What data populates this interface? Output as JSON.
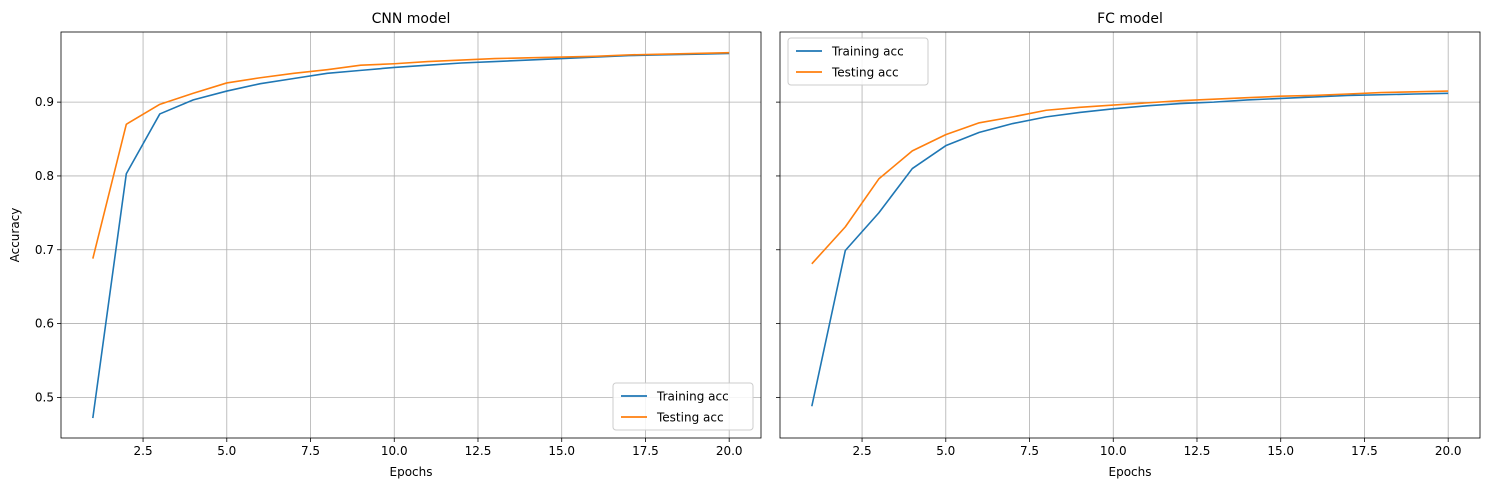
{
  "chart_data": [
    {
      "type": "line",
      "title": "CNN model",
      "xlabel": "Epochs",
      "ylabel": "Accuracy",
      "xlim": [
        0.05,
        20.95
      ],
      "ylim": [
        0.445,
        0.995
      ],
      "xticks": [
        2.5,
        5.0,
        7.5,
        10.0,
        12.5,
        15.0,
        17.5,
        20.0
      ],
      "xtick_labels": [
        "2.5",
        "5.0",
        "7.5",
        "10.0",
        "12.5",
        "15.0",
        "17.5",
        "20.0"
      ],
      "yticks": [
        0.5,
        0.6,
        0.7,
        0.8,
        0.9
      ],
      "ytick_labels": [
        "0.5",
        "0.6",
        "0.7",
        "0.8",
        "0.9"
      ],
      "grid": true,
      "legend_position": "lower-right",
      "x": [
        1,
        2,
        3,
        4,
        5,
        6,
        7,
        8,
        9,
        10,
        11,
        12,
        13,
        14,
        15,
        16,
        17,
        18,
        19,
        20
      ],
      "series": [
        {
          "name": "Training acc",
          "color": "#1f77b4",
          "values": [
            0.472,
            0.803,
            0.884,
            0.903,
            0.915,
            0.925,
            0.932,
            0.939,
            0.943,
            0.947,
            0.95,
            0.953,
            0.955,
            0.957,
            0.959,
            0.961,
            0.963,
            0.964,
            0.965,
            0.966
          ]
        },
        {
          "name": "Testing acc",
          "color": "#ff7f0e",
          "values": [
            0.688,
            0.87,
            0.897,
            0.912,
            0.926,
            0.933,
            0.939,
            0.944,
            0.95,
            0.952,
            0.955,
            0.957,
            0.959,
            0.96,
            0.961,
            0.962,
            0.964,
            0.965,
            0.966,
            0.967
          ]
        }
      ]
    },
    {
      "type": "line",
      "title": "FC model",
      "xlabel": "Epochs",
      "ylabel": "",
      "xlim": [
        0.05,
        20.95
      ],
      "ylim": [
        0.445,
        0.995
      ],
      "xticks": [
        2.5,
        5.0,
        7.5,
        10.0,
        12.5,
        15.0,
        17.5,
        20.0
      ],
      "xtick_labels": [
        "2.5",
        "5.0",
        "7.5",
        "10.0",
        "12.5",
        "15.0",
        "17.5",
        "20.0"
      ],
      "yticks": [
        0.5,
        0.6,
        0.7,
        0.8,
        0.9
      ],
      "ytick_labels": [],
      "grid": true,
      "legend_position": "upper-left",
      "x": [
        1,
        2,
        3,
        4,
        5,
        6,
        7,
        8,
        9,
        10,
        11,
        12,
        13,
        14,
        15,
        16,
        17,
        18,
        19,
        20
      ],
      "series": [
        {
          "name": "Training acc",
          "color": "#1f77b4",
          "values": [
            0.488,
            0.699,
            0.75,
            0.81,
            0.841,
            0.859,
            0.871,
            0.88,
            0.886,
            0.891,
            0.895,
            0.898,
            0.9,
            0.903,
            0.905,
            0.907,
            0.909,
            0.91,
            0.911,
            0.912
          ]
        },
        {
          "name": "Testing acc",
          "color": "#ff7f0e",
          "values": [
            0.681,
            0.731,
            0.796,
            0.834,
            0.856,
            0.872,
            0.88,
            0.889,
            0.893,
            0.896,
            0.899,
            0.902,
            0.904,
            0.906,
            0.908,
            0.909,
            0.911,
            0.913,
            0.914,
            0.915
          ]
        }
      ]
    }
  ]
}
